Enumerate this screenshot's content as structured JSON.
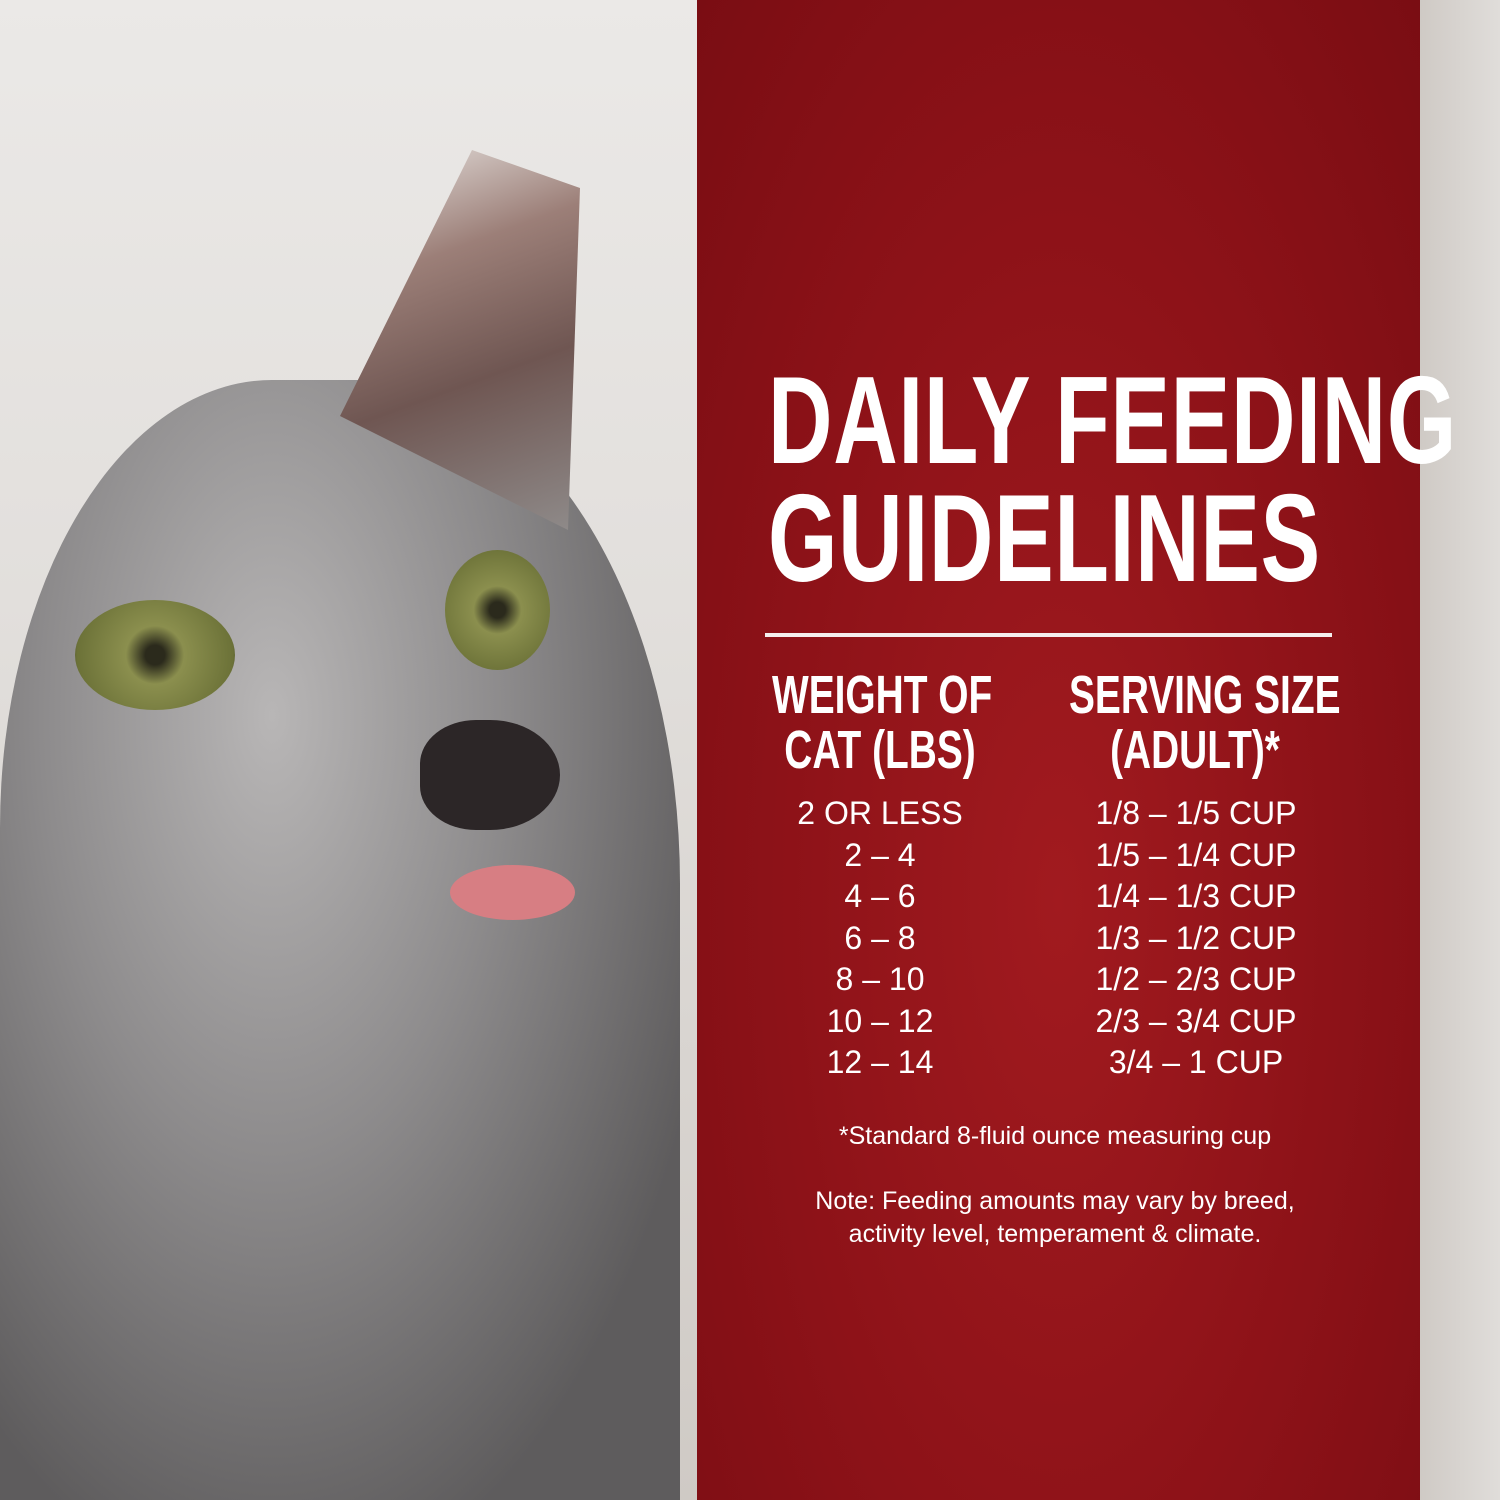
{
  "title": {
    "line1": "DAILY FEEDING",
    "line2": "GUIDELINES"
  },
  "table": {
    "headers": {
      "weight": {
        "line1": "WEIGHT OF",
        "line2": "CAT (LBS)"
      },
      "serving": {
        "line1": "SERVING SIZE",
        "line2": "(ADULT)*"
      }
    },
    "rows": [
      {
        "weight": "2 OR LESS",
        "serving": "1/8 – 1/5 CUP"
      },
      {
        "weight": "2 – 4",
        "serving": "1/5 – 1/4 CUP"
      },
      {
        "weight": "4 – 6",
        "serving": "1/4 – 1/3 CUP"
      },
      {
        "weight": "6 – 8",
        "serving": "1/3 – 1/2 CUP"
      },
      {
        "weight": "8 – 10",
        "serving": "1/2 – 2/3 CUP"
      },
      {
        "weight": "10 – 12",
        "serving": "2/3 – 3/4 CUP"
      },
      {
        "weight": "12 – 14",
        "serving": "3/4 – 1 CUP"
      }
    ]
  },
  "footnote": "*Standard 8-fluid ounce measuring cup",
  "note": {
    "line1": "Note: Feeding amounts may vary by breed,",
    "line2": "activity level, temperament & climate."
  },
  "colors": {
    "panel": "#8d1218",
    "text": "#ffffff"
  }
}
